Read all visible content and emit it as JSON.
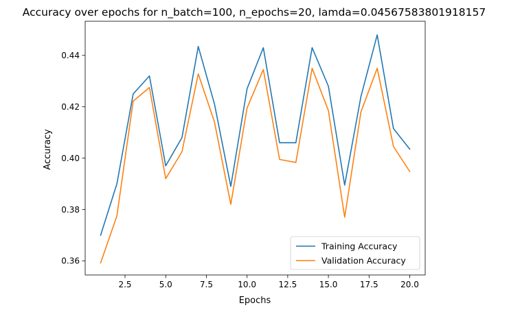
{
  "chart_data": {
    "type": "line",
    "title": "Accuracy over epochs for n_batch=100, n_epochs=20, lamda=0.04567583801918157",
    "xlabel": "Epochs",
    "ylabel": "Accuracy",
    "xlim": [
      0.05,
      20.95
    ],
    "ylim": [
      0.3545,
      0.4533
    ],
    "xticks": [
      2.5,
      5.0,
      7.5,
      10.0,
      12.5,
      15.0,
      17.5,
      20.0
    ],
    "xtick_labels": [
      "2.5",
      "5.0",
      "7.5",
      "10.0",
      "12.5",
      "15.0",
      "17.5",
      "20.0"
    ],
    "yticks": [
      0.36,
      0.38,
      0.4,
      0.42,
      0.44
    ],
    "ytick_labels": [
      "0.36",
      "0.38",
      "0.40",
      "0.42",
      "0.44"
    ],
    "grid": false,
    "legend_position": "lower-right",
    "x": [
      1,
      2,
      3,
      4,
      5,
      6,
      7,
      8,
      9,
      10,
      11,
      12,
      13,
      14,
      15,
      16,
      17,
      18,
      19,
      20
    ],
    "series": [
      {
        "name": "Training Accuracy",
        "color": "#1f77b4",
        "values": [
          0.37,
          0.39,
          0.425,
          0.432,
          0.397,
          0.408,
          0.4435,
          0.421,
          0.389,
          0.427,
          0.443,
          0.406,
          0.406,
          0.443,
          0.428,
          0.3895,
          0.424,
          0.448,
          0.4115,
          0.4035
        ]
      },
      {
        "name": "Validation Accuracy",
        "color": "#ff7f0e",
        "values": [
          0.3592,
          0.3775,
          0.4222,
          0.4275,
          0.392,
          0.4025,
          0.4328,
          0.414,
          0.382,
          0.4195,
          0.4345,
          0.3995,
          0.3983,
          0.435,
          0.4185,
          0.377,
          0.418,
          0.435,
          0.4045,
          0.3948
        ]
      }
    ]
  }
}
